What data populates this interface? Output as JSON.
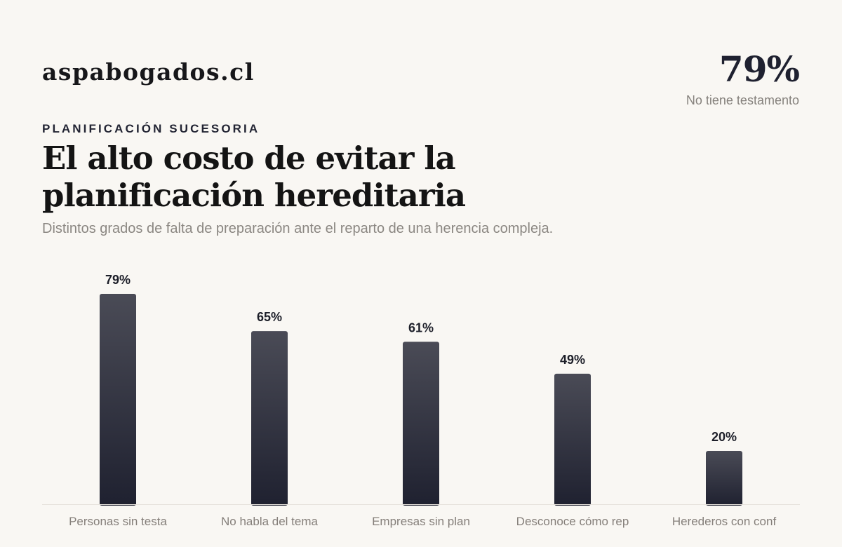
{
  "brand": "aspabogados.cl",
  "kpi": {
    "value": "79%",
    "label": "No tiene testamento"
  },
  "eyebrow": "PLANIFICACIÓN SUCESORIA",
  "title": "El alto costo de evitar la planificación hereditaria",
  "subtitle": "Distintos grados de falta de preparación ante el reparto de una herencia compleja.",
  "colors": {
    "background": "#f9f7f3",
    "bar_top": "#4a4b56",
    "bar_bottom": "#1f2130",
    "baseline": "#e6e2dc"
  },
  "chart_data": {
    "type": "bar",
    "categories": [
      "Personas sin testa",
      "No habla del tema",
      "Empresas sin plan",
      "Desconoce cómo rep",
      "Herederos con conf"
    ],
    "values": [
      79,
      65,
      61,
      49,
      20
    ],
    "value_labels": [
      "79%",
      "65%",
      "61%",
      "49%",
      "20%"
    ],
    "title": "",
    "xlabel": "",
    "ylabel": "",
    "ylim": [
      0,
      79
    ],
    "grid": false,
    "legend": "none"
  }
}
